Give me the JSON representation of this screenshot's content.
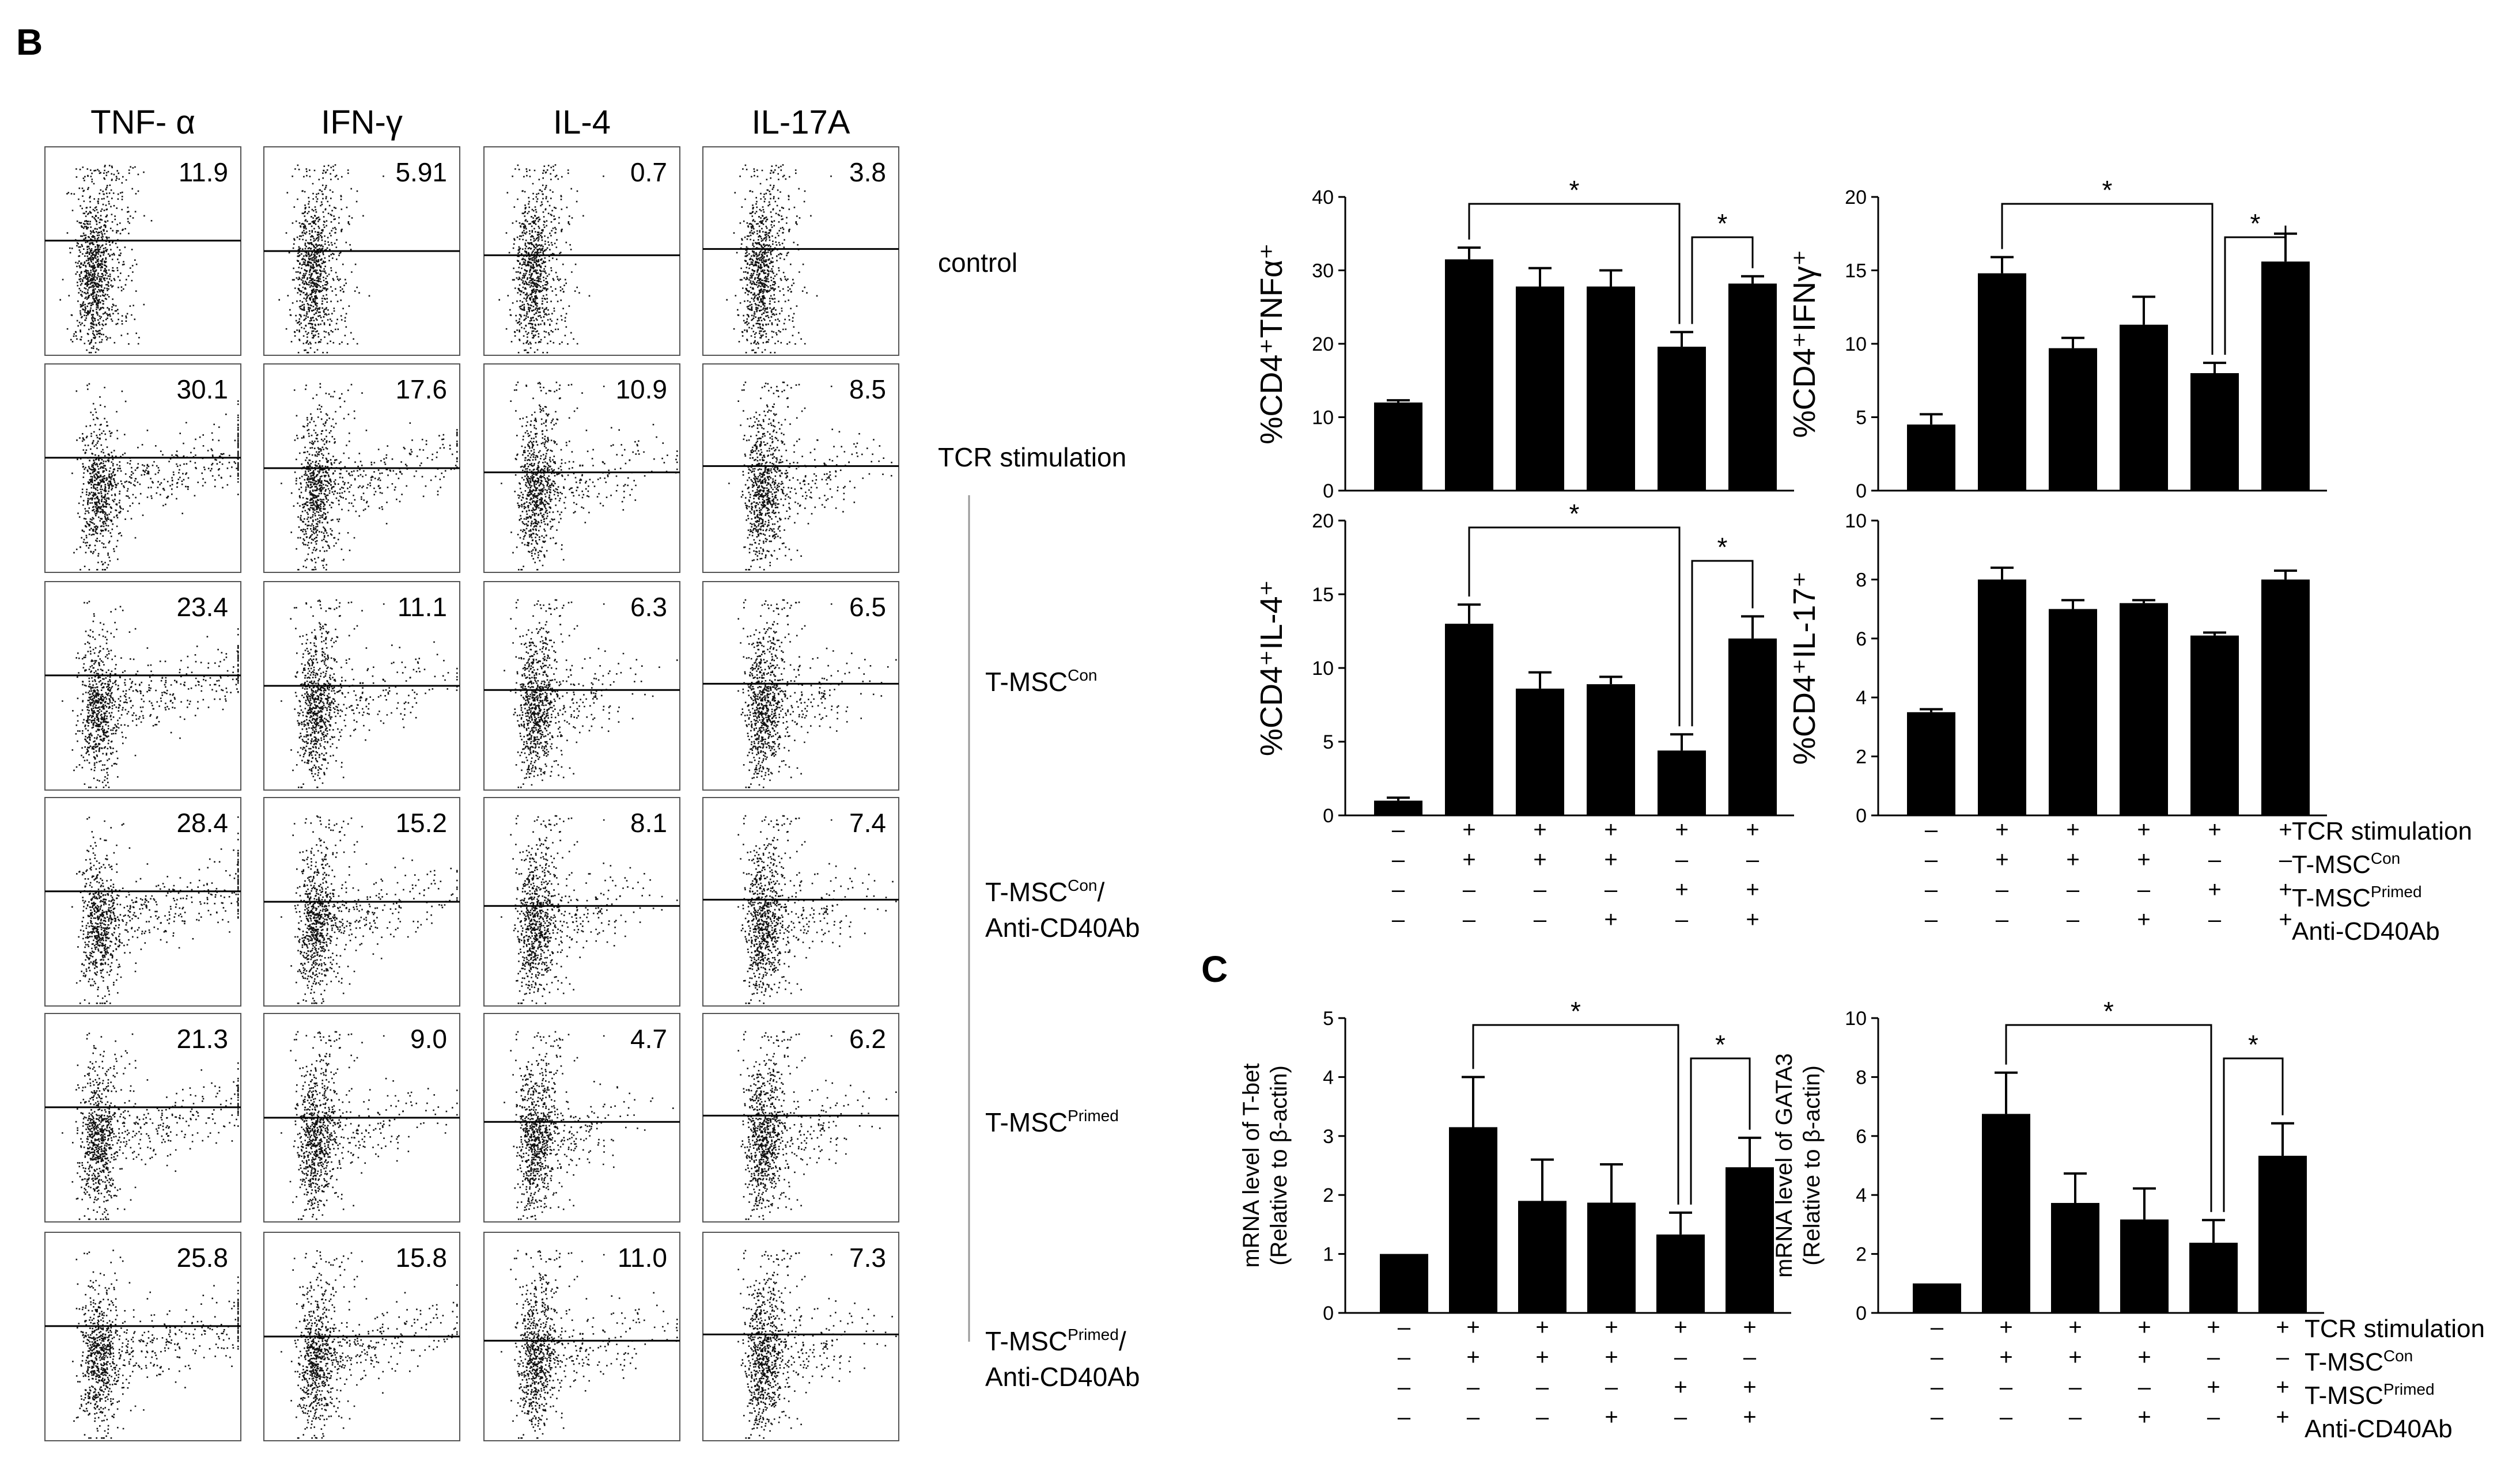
{
  "panels": {
    "b": "B",
    "c": "C"
  },
  "flow": {
    "columns": [
      "TNF- α",
      "IFN-γ",
      "IL-4",
      "IL-17A"
    ],
    "rows": [
      {
        "label": "control",
        "values": [
          "11.9",
          "5.91",
          "0.7",
          "3.8"
        ]
      },
      {
        "label": "TCR stimulation",
        "values": [
          "30.1",
          "17.6",
          "10.9",
          "8.5"
        ]
      },
      {
        "label_main": "T-MSC",
        "label_sup": "Con",
        "label_line2": "",
        "values": [
          "23.4",
          "11.1",
          "6.3",
          "6.5"
        ]
      },
      {
        "label_main": "T-MSC",
        "label_sup": "Con",
        "label_tail": "/",
        "label_line2": "Anti-CD40Ab",
        "values": [
          "28.4",
          "15.2",
          "8.1",
          "7.4"
        ]
      },
      {
        "label_main": "T-MSC",
        "label_sup": "Primed",
        "label_line2": "",
        "values": [
          "21.3",
          "9.0",
          "4.7",
          "6.2"
        ]
      },
      {
        "label_main": "T-MSC",
        "label_sup": "Primed",
        "label_tail": "/",
        "label_line2": "Anti-CD40Ab",
        "values": [
          "25.8",
          "15.8",
          "11.0",
          "7.3"
        ]
      }
    ]
  },
  "chart_data": [
    {
      "id": "tnf",
      "type": "bar",
      "ylabel": "%CD4⁺TNFα⁺",
      "ylim": [
        0,
        40
      ],
      "yticks": [
        0,
        10,
        20,
        30,
        40
      ],
      "values": [
        12,
        31.5,
        27.8,
        27.8,
        19.6,
        28.2
      ],
      "errors": [
        0.3,
        1.6,
        2.5,
        2.2,
        2.0,
        1.0
      ],
      "sig": [
        {
          "from": 1,
          "to": 4,
          "label": "*"
        },
        {
          "from": 4,
          "to": 5,
          "label": "*"
        }
      ]
    },
    {
      "id": "ifn",
      "type": "bar",
      "ylabel": "%CD4⁺IFNγ⁺",
      "ylim": [
        0,
        20
      ],
      "yticks": [
        0,
        5,
        10,
        15,
        20
      ],
      "values": [
        4.5,
        14.8,
        9.7,
        11.3,
        8.0,
        15.6
      ],
      "errors": [
        0.7,
        1.1,
        0.7,
        1.9,
        0.7,
        1.9
      ],
      "sig": [
        {
          "from": 1,
          "to": 4,
          "label": "*"
        },
        {
          "from": 4,
          "to": 5,
          "label": "*"
        }
      ]
    },
    {
      "id": "il4",
      "type": "bar",
      "ylabel": "%CD4⁺IL-4⁺",
      "ylim": [
        0,
        20
      ],
      "yticks": [
        0,
        5,
        10,
        15,
        20
      ],
      "values": [
        1.0,
        13.0,
        8.6,
        8.9,
        4.4,
        12.0
      ],
      "errors": [
        0.2,
        1.3,
        1.1,
        0.5,
        1.1,
        1.5
      ],
      "sig": [
        {
          "from": 1,
          "to": 4,
          "label": "*"
        },
        {
          "from": 4,
          "to": 5,
          "label": "*"
        }
      ]
    },
    {
      "id": "il17",
      "type": "bar",
      "ylabel": "%CD4⁺IL-17⁺",
      "ylim": [
        0,
        10
      ],
      "yticks": [
        0,
        2,
        4,
        6,
        8,
        10
      ],
      "values": [
        3.5,
        8.0,
        7.0,
        7.2,
        6.1,
        8.0
      ],
      "errors": [
        0.1,
        0.4,
        0.3,
        0.1,
        0.1,
        0.3
      ],
      "sig": []
    },
    {
      "id": "tbet",
      "type": "bar",
      "ylabel_line1": "mRNA level of T-bet",
      "ylabel_line2": "(Relative to β-actin)",
      "ylim": [
        0,
        5
      ],
      "yticks": [
        0,
        1,
        2,
        3,
        4,
        5
      ],
      "values": [
        1.0,
        3.15,
        1.9,
        1.87,
        1.33,
        2.47
      ],
      "errors": [
        0,
        0.85,
        0.7,
        0.65,
        0.37,
        0.5
      ],
      "sig": [
        {
          "from": 1,
          "to": 4,
          "label": "*"
        },
        {
          "from": 4,
          "to": 5,
          "label": "*"
        }
      ]
    },
    {
      "id": "gata3",
      "type": "bar",
      "ylabel_line1": "mRNA level of GATA3",
      "ylabel_line2": "(Relative to β-actin)",
      "ylim": [
        0,
        10
      ],
      "yticks": [
        0,
        2,
        4,
        6,
        8,
        10
      ],
      "values": [
        1.0,
        6.75,
        3.73,
        3.17,
        2.38,
        5.33
      ],
      "errors": [
        0,
        1.4,
        1.0,
        1.05,
        0.77,
        1.1
      ],
      "sig": [
        {
          "from": 1,
          "to": 4,
          "label": "*"
        },
        {
          "from": 4,
          "to": 5,
          "label": "*"
        }
      ]
    }
  ],
  "conditions": {
    "rows": [
      [
        "–",
        "+",
        "+",
        "+",
        "+",
        "+"
      ],
      [
        "–",
        "+",
        "+",
        "+",
        "–",
        "–"
      ],
      [
        "–",
        "–",
        "–",
        "–",
        "+",
        "+"
      ],
      [
        "–",
        "–",
        "–",
        "+",
        "–",
        "+"
      ]
    ],
    "labels": [
      {
        "main": "TCR stimulation",
        "sup": ""
      },
      {
        "main": "T-MSC",
        "sup": "Con"
      },
      {
        "main": "T-MSC",
        "sup": "Primed"
      },
      {
        "main": "Anti-CD40Ab",
        "sup": ""
      }
    ]
  }
}
